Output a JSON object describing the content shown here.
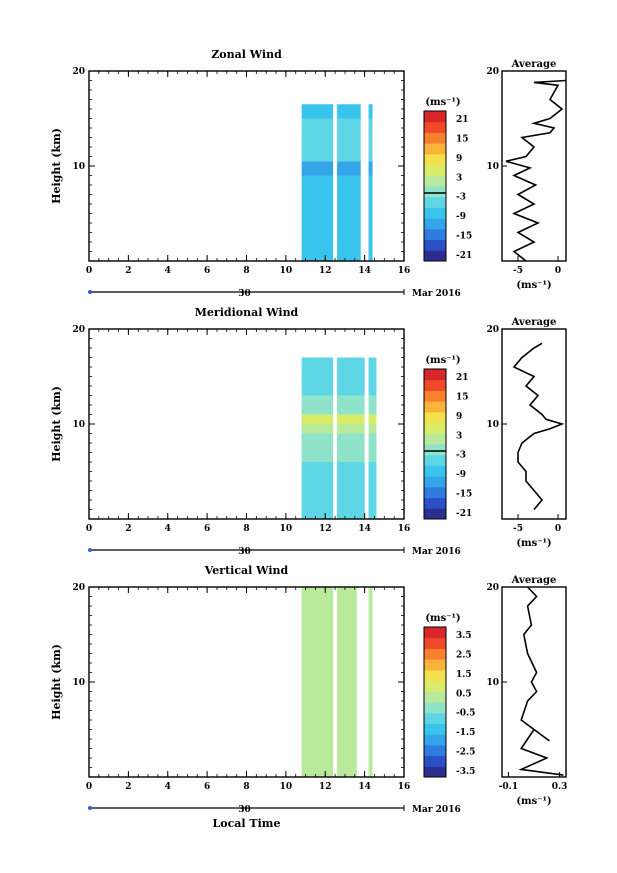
{
  "colors": {
    "scale": [
      "#2b2d8f",
      "#2a4fc7",
      "#2f7be0",
      "#33a5e8",
      "#38c4ec",
      "#5fd6e6",
      "#8fe3c9",
      "#b9ea9b",
      "#d9ec6a",
      "#f3e04a",
      "#f9b23a",
      "#f7812e",
      "#ee4a2a",
      "#d8262a"
    ],
    "line": "#000000"
  },
  "panels": [
    {
      "title": "Zonal Wind",
      "ylabel": "Height (km)",
      "yticks": [
        "0",
        "10",
        "20"
      ],
      "xticks": [
        "0",
        "2",
        "4",
        "6",
        "8",
        "10",
        "12",
        "14",
        "16"
      ],
      "date_day": "30",
      "date_month": "Mar 2016",
      "xlabel": "",
      "colorbar": {
        "unit": "(ms⁻¹)",
        "labels": [
          "21",
          "15",
          "9",
          "3",
          "-3",
          "-9",
          "-15",
          "-21"
        ]
      },
      "avg": {
        "title": "Average",
        "yticks": [
          "20",
          "10"
        ],
        "xticks": [
          "-5",
          "0"
        ],
        "unit": "(ms⁻¹)"
      }
    },
    {
      "title": "Meridional Wind",
      "ylabel": "Height (km)",
      "yticks": [
        "0",
        "10",
        "20"
      ],
      "xticks": [
        "0",
        "2",
        "4",
        "6",
        "8",
        "10",
        "12",
        "14",
        "16"
      ],
      "date_day": "30",
      "date_month": "Mar 2016",
      "xlabel": "",
      "colorbar": {
        "unit": "(ms⁻¹)",
        "labels": [
          "21",
          "15",
          "9",
          "3",
          "-3",
          "-9",
          "-15",
          "-21"
        ]
      },
      "avg": {
        "title": "Average",
        "yticks": [
          "20",
          "10"
        ],
        "xticks": [
          "-5",
          "0"
        ],
        "unit": "(ms⁻¹)"
      }
    },
    {
      "title": "Vertical Wind",
      "ylabel": "Height (km)",
      "yticks": [
        "0",
        "10",
        "20"
      ],
      "xticks": [
        "0",
        "2",
        "4",
        "6",
        "8",
        "10",
        "12",
        "14",
        "16"
      ],
      "date_day": "30",
      "date_month": "Mar 2016",
      "xlabel": "Local Time",
      "colorbar": {
        "unit": "(ms⁻¹)",
        "labels": [
          "3.5",
          "2.5",
          "1.5",
          "0.5",
          "-0.5",
          "-1.5",
          "-2.5",
          "-3.5"
        ]
      },
      "avg": {
        "title": "Average",
        "yticks": [
          "20",
          "10"
        ],
        "xticks": [
          "-0.1",
          "0.3"
        ],
        "unit": "(ms⁻¹)"
      }
    }
  ],
  "chart_data": [
    {
      "type": "heatmap",
      "title": "Zonal Wind",
      "ylabel": "Height (km)",
      "xlabel": "",
      "xlim": [
        0,
        16
      ],
      "ylim": [
        0,
        20
      ],
      "clim": [
        -24,
        24
      ],
      "x_blocks": [
        [
          10.8,
          12.4
        ],
        [
          12.6,
          13.8
        ],
        [
          14.2,
          14.4
        ]
      ],
      "rows": [
        {
          "y": [
            0,
            3
          ],
          "value": -8
        },
        {
          "y": [
            3,
            6
          ],
          "value": -10
        },
        {
          "y": [
            6,
            9
          ],
          "value": -8
        },
        {
          "y": [
            9,
            10.5
          ],
          "value": -13
        },
        {
          "y": [
            10.5,
            13
          ],
          "value": -4
        },
        {
          "y": [
            13,
            15
          ],
          "value": -6
        },
        {
          "y": [
            15,
            16.5
          ],
          "value": -7
        }
      ]
    },
    {
      "type": "heatmap",
      "title": "Meridional Wind",
      "ylabel": "Height (km)",
      "xlabel": "",
      "xlim": [
        0,
        16
      ],
      "ylim": [
        0,
        20
      ],
      "clim": [
        -24,
        24
      ],
      "x_blocks": [
        [
          10.8,
          12.4
        ],
        [
          12.6,
          14.0
        ],
        [
          14.2,
          14.6
        ]
      ],
      "rows": [
        {
          "y": [
            0,
            3
          ],
          "value": -6
        },
        {
          "y": [
            3,
            6
          ],
          "value": -4
        },
        {
          "y": [
            6,
            9
          ],
          "value": -3
        },
        {
          "y": [
            9,
            10
          ],
          "value": 1
        },
        {
          "y": [
            10,
            11
          ],
          "value": 4
        },
        {
          "y": [
            11,
            13
          ],
          "value": -2
        },
        {
          "y": [
            13,
            15
          ],
          "value": -4
        },
        {
          "y": [
            15,
            17
          ],
          "value": -5
        }
      ]
    },
    {
      "type": "heatmap",
      "title": "Vertical Wind",
      "ylabel": "Height (km)",
      "xlabel": "Local Time",
      "xlim": [
        0,
        16
      ],
      "ylim": [
        0,
        20
      ],
      "clim": [
        -4,
        4
      ],
      "x_blocks": [
        [
          10.8,
          12.4
        ],
        [
          12.6,
          13.6
        ],
        [
          14.2,
          14.4
        ]
      ],
      "rows": [
        {
          "y": [
            0,
            5
          ],
          "value": 0.3
        },
        {
          "y": [
            5,
            10
          ],
          "value": 0.1
        },
        {
          "y": [
            10,
            15
          ],
          "value": 0.0
        },
        {
          "y": [
            15,
            20
          ],
          "value": 0.2
        }
      ]
    },
    {
      "type": "line",
      "title": "Average",
      "series_of": "Zonal Wind",
      "xlim": [
        -7,
        1
      ],
      "ylim": [
        0,
        20
      ],
      "points": [
        [
          -4,
          0
        ],
        [
          -5.5,
          1
        ],
        [
          -3,
          2
        ],
        [
          -5,
          3
        ],
        [
          -2.5,
          4
        ],
        [
          -5.5,
          5
        ],
        [
          -3,
          6
        ],
        [
          -5,
          7
        ],
        [
          -2.8,
          8
        ],
        [
          -5.5,
          9
        ],
        [
          -3.5,
          9.8
        ],
        [
          -6.5,
          10.5
        ],
        [
          -4,
          11
        ],
        [
          -3,
          12
        ],
        [
          -4.5,
          13
        ],
        [
          -1,
          13.5
        ],
        [
          -0.5,
          14
        ],
        [
          -3,
          14.5
        ],
        [
          -1,
          15
        ],
        [
          0.5,
          16
        ],
        [
          -1,
          17
        ],
        [
          0,
          18.5
        ],
        [
          -3,
          18.8
        ],
        [
          1,
          19
        ]
      ]
    },
    {
      "type": "line",
      "title": "Average",
      "series_of": "Meridional Wind",
      "xlim": [
        -7,
        1
      ],
      "ylim": [
        0,
        20
      ],
      "points": [
        [
          -3,
          1
        ],
        [
          -2,
          2
        ],
        [
          -3,
          3
        ],
        [
          -4,
          4
        ],
        [
          -4,
          5
        ],
        [
          -5,
          6
        ],
        [
          -5,
          7
        ],
        [
          -4.5,
          8
        ],
        [
          -3,
          9
        ],
        [
          -1,
          9.5
        ],
        [
          0.5,
          10
        ],
        [
          -1.5,
          10.5
        ],
        [
          -2,
          11
        ],
        [
          -3.5,
          12
        ],
        [
          -2.5,
          13
        ],
        [
          -4,
          14
        ],
        [
          -3,
          15
        ],
        [
          -5.5,
          16
        ],
        [
          -4.5,
          17
        ],
        [
          -3,
          18
        ],
        [
          -2,
          18.5
        ]
      ]
    },
    {
      "type": "line",
      "title": "Average",
      "series_of": "Vertical Wind",
      "xlim": [
        -0.15,
        0.35
      ],
      "ylim": [
        0,
        20
      ],
      "points": [
        [
          0.33,
          0.2
        ],
        [
          0.0,
          0.8
        ],
        [
          0.2,
          2
        ],
        [
          0.0,
          3
        ],
        [
          0.1,
          5
        ],
        [
          0.22,
          3.8
        ],
        [
          0.0,
          6
        ],
        [
          0.05,
          8
        ],
        [
          0.12,
          9
        ],
        [
          0.08,
          10
        ],
        [
          0.12,
          11
        ],
        [
          0.05,
          13
        ],
        [
          0.02,
          15
        ],
        [
          0.08,
          16
        ],
        [
          0.05,
          18
        ],
        [
          0.12,
          19
        ],
        [
          0.05,
          20
        ]
      ]
    }
  ]
}
